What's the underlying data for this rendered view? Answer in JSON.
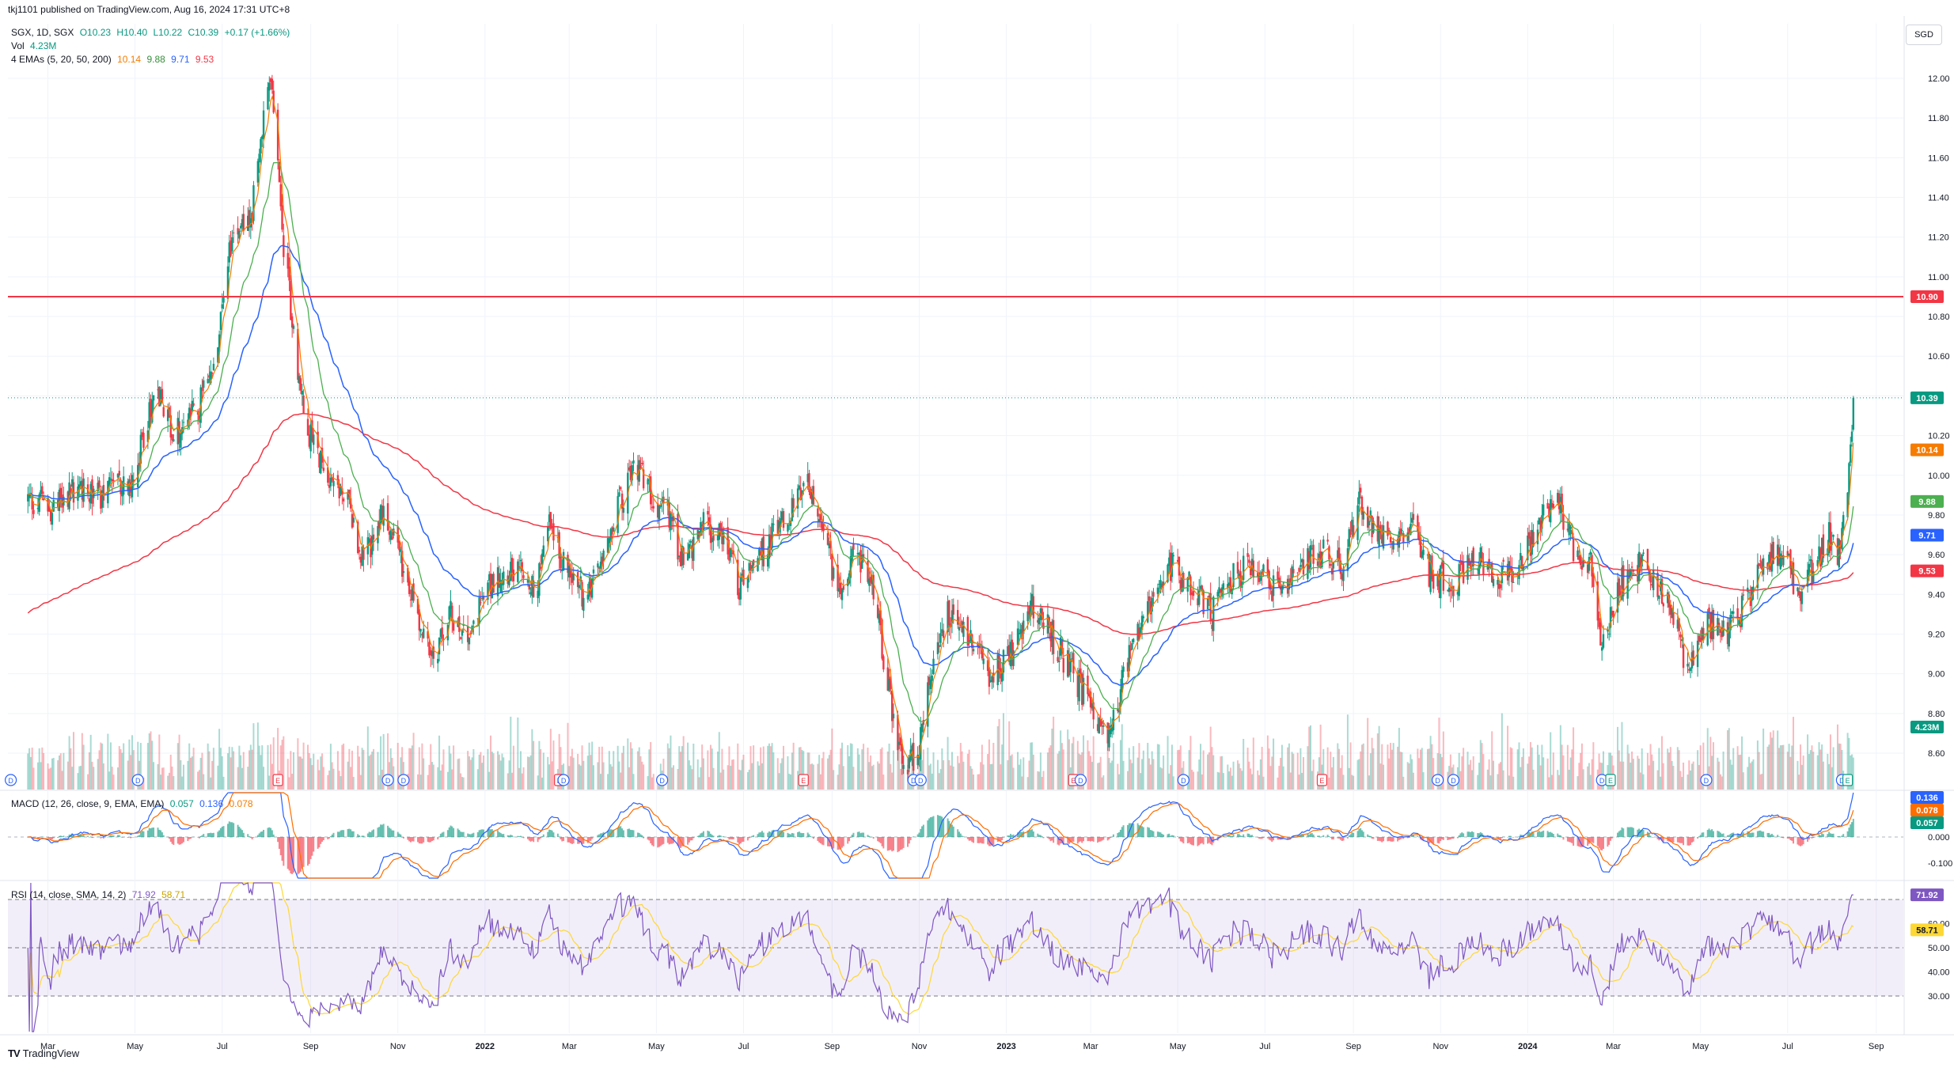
{
  "published": "tkj1101 published on TradingView.com, Aug 16, 2024 17:31 UTC+8",
  "currency": "SGD",
  "footer_logo": "TradingView",
  "legend": {
    "symbol": "SGX, 1D, SGX",
    "open": "O10.23",
    "high": "H10.40",
    "low": "L10.22",
    "close": "C10.39",
    "change": "+0.17 (+1.66%)",
    "vol_label": "Vol",
    "vol_value": "4.23M",
    "ema_label": "4 EMAs (5, 20, 50, 200)",
    "ema5": "10.14",
    "ema20": "9.88",
    "ema50": "9.71",
    "ema200": "9.53"
  },
  "macd_legend": {
    "label": "MACD (12, 26, close, 9, EMA, EMA)",
    "hist": "0.057",
    "macd": "0.136",
    "signal": "0.078"
  },
  "rsi_legend": {
    "label": "RSI (14, close, SMA, 14, 2)",
    "rsi": "71.92",
    "sma": "58.71"
  },
  "colors": {
    "up": "#089981",
    "down": "#f23645",
    "ema5": "#f57c00",
    "ema20": "#4caf50",
    "ema50": "#2962ff",
    "ema200": "#f23645",
    "macd": "#2962ff",
    "signal": "#ff6d00",
    "rsi": "#7e57c2",
    "rsi_sma": "#fdd835",
    "hline": "#f23645"
  },
  "chart_data": [
    {
      "type": "candlestick",
      "panel": "price",
      "y_ticks": [
        "12.00",
        "11.80",
        "11.60",
        "11.40",
        "11.20",
        "11.00",
        "10.80",
        "10.60",
        "10.20",
        "10.00",
        "9.80",
        "9.60",
        "9.40",
        "9.20",
        "9.00",
        "8.80",
        "8.60"
      ],
      "ylim": [
        8.45,
        12.25
      ],
      "x_labels": [
        "Mar",
        "May",
        "Jul",
        "Sep",
        "Nov",
        "2022",
        "Mar",
        "May",
        "Jul",
        "Sep",
        "Nov",
        "2023",
        "Mar",
        "May",
        "Jul",
        "Sep",
        "Nov",
        "2024",
        "Mar",
        "May",
        "Jul",
        "Sep"
      ],
      "close_anchors": [
        [
          "2021-02-15",
          9.88
        ],
        [
          "2021-03-05",
          9.82
        ],
        [
          "2021-03-20",
          9.95
        ],
        [
          "2021-04-10",
          9.9
        ],
        [
          "2021-05-01",
          10.0
        ],
        [
          "2021-05-15",
          10.45
        ],
        [
          "2021-05-28",
          10.2
        ],
        [
          "2021-06-15",
          10.35
        ],
        [
          "2021-06-25",
          10.55
        ],
        [
          "2021-07-02",
          10.95
        ],
        [
          "2021-07-10",
          11.3
        ],
        [
          "2021-07-20",
          11.25
        ],
        [
          "2021-07-27",
          11.6
        ],
        [
          "2021-08-03",
          12.0
        ],
        [
          "2021-08-06",
          11.85
        ],
        [
          "2021-08-12",
          11.2
        ],
        [
          "2021-08-20",
          10.75
        ],
        [
          "2021-08-27",
          10.3
        ],
        [
          "2021-09-03",
          10.15
        ],
        [
          "2021-09-15",
          10.0
        ],
        [
          "2021-09-28",
          9.85
        ],
        [
          "2021-10-08",
          9.55
        ],
        [
          "2021-10-20",
          9.8
        ],
        [
          "2021-10-30",
          9.65
        ],
        [
          "2021-11-10",
          9.4
        ],
        [
          "2021-11-25",
          9.05
        ],
        [
          "2021-12-08",
          9.3
        ],
        [
          "2021-12-20",
          9.2
        ],
        [
          "2022-01-05",
          9.45
        ],
        [
          "2022-01-20",
          9.55
        ],
        [
          "2022-02-05",
          9.4
        ],
        [
          "2022-02-15",
          9.75
        ],
        [
          "2022-03-01",
          9.5
        ],
        [
          "2022-03-12",
          9.4
        ],
        [
          "2022-03-25",
          9.65
        ],
        [
          "2022-04-05",
          9.85
        ],
        [
          "2022-04-15",
          10.05
        ],
        [
          "2022-04-28",
          9.9
        ],
        [
          "2022-05-10",
          9.8
        ],
        [
          "2022-05-20",
          9.55
        ],
        [
          "2022-06-01",
          9.75
        ],
        [
          "2022-06-15",
          9.7
        ],
        [
          "2022-06-28",
          9.45
        ],
        [
          "2022-07-10",
          9.55
        ],
        [
          "2022-07-25",
          9.75
        ],
        [
          "2022-08-05",
          9.85
        ],
        [
          "2022-08-15",
          9.95
        ],
        [
          "2022-08-25",
          9.7
        ],
        [
          "2022-09-05",
          9.45
        ],
        [
          "2022-09-20",
          9.6
        ],
        [
          "2022-10-01",
          9.4
        ],
        [
          "2022-10-12",
          8.85
        ],
        [
          "2022-10-22",
          8.5
        ],
        [
          "2022-11-01",
          8.65
        ],
        [
          "2022-11-10",
          9.05
        ],
        [
          "2022-11-20",
          9.3
        ],
        [
          "2022-12-05",
          9.2
        ],
        [
          "2022-12-20",
          9.0
        ],
        [
          "2023-01-05",
          9.1
        ],
        [
          "2023-01-20",
          9.35
        ],
        [
          "2023-02-05",
          9.15
        ],
        [
          "2023-02-20",
          8.95
        ],
        [
          "2023-03-05",
          8.8
        ],
        [
          "2023-03-15",
          8.7
        ],
        [
          "2023-03-25",
          9.0
        ],
        [
          "2023-04-10",
          9.35
        ],
        [
          "2023-04-25",
          9.55
        ],
        [
          "2023-05-10",
          9.45
        ],
        [
          "2023-05-25",
          9.3
        ],
        [
          "2023-06-10",
          9.5
        ],
        [
          "2023-06-25",
          9.55
        ],
        [
          "2023-07-10",
          9.4
        ],
        [
          "2023-07-25",
          9.55
        ],
        [
          "2023-08-10",
          9.6
        ],
        [
          "2023-08-25",
          9.55
        ],
        [
          "2023-09-05",
          9.85
        ],
        [
          "2023-09-15",
          9.75
        ],
        [
          "2023-09-28",
          9.65
        ],
        [
          "2023-10-10",
          9.75
        ],
        [
          "2023-10-25",
          9.5
        ],
        [
          "2023-11-10",
          9.45
        ],
        [
          "2023-11-25",
          9.6
        ],
        [
          "2023-12-10",
          9.5
        ],
        [
          "2023-12-25",
          9.55
        ],
        [
          "2024-01-10",
          9.75
        ],
        [
          "2024-01-20",
          9.9
        ],
        [
          "2024-02-01",
          9.65
        ],
        [
          "2024-02-15",
          9.55
        ],
        [
          "2024-02-22",
          9.1
        ],
        [
          "2024-03-05",
          9.45
        ],
        [
          "2024-03-20",
          9.55
        ],
        [
          "2024-04-05",
          9.4
        ],
        [
          "2024-04-15",
          9.2
        ],
        [
          "2024-04-22",
          9.0
        ],
        [
          "2024-05-05",
          9.25
        ],
        [
          "2024-05-20",
          9.2
        ],
        [
          "2024-06-01",
          9.35
        ],
        [
          "2024-06-15",
          9.55
        ],
        [
          "2024-06-28",
          9.65
        ],
        [
          "2024-07-08",
          9.4
        ],
        [
          "2024-07-20",
          9.55
        ],
        [
          "2024-07-30",
          9.7
        ],
        [
          "2024-08-05",
          9.6
        ],
        [
          "2024-08-08",
          9.7
        ],
        [
          "2024-08-12",
          9.95
        ],
        [
          "2024-08-14",
          10.22
        ],
        [
          "2024-08-16",
          10.39
        ]
      ],
      "horizontal_line": 10.9,
      "price_labels": [
        "10.90",
        "10.39",
        "10.14",
        "9.88",
        "9.71",
        "9.53",
        "4.23M"
      ]
    },
    {
      "type": "bar",
      "panel": "macd",
      "y_ticks": [
        "0.000",
        "-0.100"
      ],
      "price_labels": [
        "0.136",
        "0.078",
        "0.057"
      ]
    },
    {
      "type": "line",
      "panel": "rsi",
      "y_ticks": [
        "70.00",
        "60.00",
        "50.00",
        "40.00",
        "30.00"
      ],
      "price_labels": [
        "71.92",
        "58.71"
      ]
    }
  ],
  "event_markers": [
    {
      "kind": "D"
    },
    {
      "kind": "D"
    },
    {
      "kind": "E"
    },
    {
      "kind": "D"
    },
    {
      "kind": "D"
    },
    {
      "kind": "E"
    },
    {
      "kind": "D"
    },
    {
      "kind": "D"
    },
    {
      "kind": "E"
    },
    {
      "kind": "D"
    },
    {
      "kind": "D"
    },
    {
      "kind": "E"
    },
    {
      "kind": "D"
    },
    {
      "kind": "D"
    },
    {
      "kind": "E"
    },
    {
      "kind": "D"
    },
    {
      "kind": "D"
    },
    {
      "kind": "D"
    },
    {
      "kind": "E"
    },
    {
      "kind": "D"
    },
    {
      "kind": "D"
    },
    {
      "kind": "E"
    }
  ]
}
